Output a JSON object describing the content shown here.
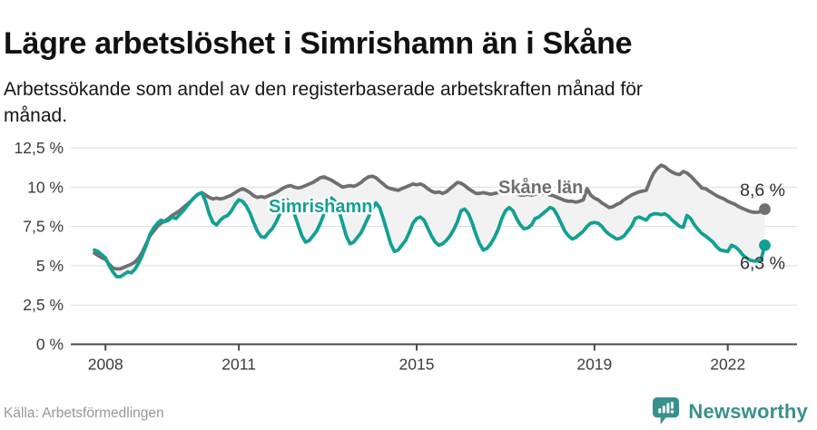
{
  "header": {
    "title": "Lägre arbetslöshet i Simrishamn än i Skåne",
    "subtitle": "Arbetssökande som andel av den registerbaserade arbetskraften månad för\nmånad."
  },
  "footer": {
    "source": "Källa: Arbetsförmedlingen",
    "brand": "Newsworthy"
  },
  "colors": {
    "simrishamn": "#12A093",
    "skane": "#6F6F6F",
    "area_fill": "#F2F2F2",
    "grid": "#DBDBDB",
    "axis": "#4A4A4A",
    "tick_text": "#3C3C3C",
    "end_label_text": "#2E2E2E",
    "brand": "#38918D",
    "background": "#FFFFFF"
  },
  "chart_data": {
    "type": "line",
    "title": "Lägre arbetslöshet i Simrishamn än i Skåne",
    "subtitle": "Arbetssökande som andel av den registerbaserade arbetskraften månad för månad.",
    "frequency": "monthly",
    "x_start": "2007-10",
    "x_end": "2022-11",
    "grid": "horizontal",
    "legend_position": "inline-labels",
    "ylim": [
      0,
      13.2
    ],
    "y_ticks": [
      0,
      2.5,
      5,
      7.5,
      10,
      12.5
    ],
    "y_tick_labels": [
      "0 %",
      "2,5 %",
      "5 %",
      "7,5 %",
      "10 %",
      "12,5 %"
    ],
    "x_ticks": [
      {
        "label": "2008",
        "month_index": 3
      },
      {
        "label": "2011",
        "month_index": 39
      },
      {
        "label": "2015",
        "month_index": 87
      },
      {
        "label": "2019",
        "month_index": 135
      },
      {
        "label": "2022",
        "month_index": 171
      }
    ],
    "series": [
      {
        "name": "Skåne län",
        "color": "#6F6F6F",
        "end_label": "8,6 %",
        "values": [
          5.8,
          5.65,
          5.5,
          5.4,
          5.1,
          4.85,
          4.8,
          4.8,
          4.9,
          5.0,
          5.1,
          5.25,
          5.5,
          5.9,
          6.4,
          6.9,
          7.2,
          7.5,
          7.7,
          7.85,
          8.0,
          8.2,
          8.35,
          8.5,
          8.7,
          8.9,
          9.1,
          9.35,
          9.55,
          9.65,
          9.5,
          9.35,
          9.25,
          9.3,
          9.25,
          9.3,
          9.4,
          9.5,
          9.65,
          9.8,
          9.9,
          9.8,
          9.65,
          9.45,
          9.35,
          9.4,
          9.35,
          9.45,
          9.55,
          9.65,
          9.8,
          9.95,
          10.05,
          10.1,
          10.0,
          9.95,
          10.0,
          10.1,
          10.2,
          10.3,
          10.45,
          10.6,
          10.65,
          10.55,
          10.45,
          10.3,
          10.15,
          10.0,
          10.05,
          10.1,
          10.05,
          10.15,
          10.3,
          10.5,
          10.65,
          10.7,
          10.6,
          10.4,
          10.2,
          10.0,
          9.9,
          9.85,
          9.8,
          9.9,
          10.0,
          10.1,
          10.2,
          10.15,
          10.2,
          10.1,
          9.9,
          9.75,
          9.65,
          9.7,
          9.6,
          9.7,
          9.9,
          10.1,
          10.3,
          10.25,
          10.1,
          9.9,
          9.75,
          9.6,
          9.6,
          9.65,
          9.6,
          9.55,
          9.6,
          9.65,
          9.7,
          9.75,
          9.8,
          9.7,
          9.6,
          9.5,
          9.5,
          9.55,
          9.5,
          9.55,
          9.6,
          9.6,
          9.6,
          9.5,
          9.45,
          9.35,
          9.25,
          9.15,
          9.1,
          9.1,
          9.05,
          9.1,
          9.2,
          9.9,
          9.5,
          9.3,
          9.2,
          9.0,
          8.85,
          8.7,
          8.75,
          8.9,
          9.0,
          9.2,
          9.35,
          9.5,
          9.6,
          9.7,
          9.75,
          9.8,
          10.4,
          10.9,
          11.2,
          11.4,
          11.3,
          11.1,
          10.95,
          10.85,
          10.8,
          11.0,
          10.9,
          10.7,
          10.45,
          10.2,
          9.95,
          9.9,
          9.75,
          9.6,
          9.45,
          9.35,
          9.25,
          9.1,
          9.0,
          8.9,
          8.75,
          8.65,
          8.55,
          8.45,
          8.4,
          8.4,
          8.45,
          8.6
        ]
      },
      {
        "name": "Simrishamn",
        "color": "#12A093",
        "end_label": "6,3 %",
        "values": [
          6.0,
          5.9,
          5.7,
          5.5,
          5.0,
          4.6,
          4.3,
          4.3,
          4.45,
          4.6,
          4.55,
          4.8,
          5.2,
          5.7,
          6.3,
          7.0,
          7.4,
          7.7,
          7.9,
          7.8,
          7.9,
          8.1,
          8.0,
          8.25,
          8.5,
          8.8,
          9.1,
          9.35,
          9.55,
          9.65,
          9.1,
          8.3,
          7.75,
          7.6,
          7.9,
          8.1,
          8.2,
          8.5,
          8.9,
          9.2,
          9.1,
          8.8,
          8.35,
          7.75,
          7.2,
          6.85,
          6.8,
          7.1,
          7.35,
          7.75,
          8.25,
          8.95,
          9.2,
          8.9,
          8.3,
          7.6,
          6.9,
          6.5,
          6.6,
          6.9,
          7.2,
          7.7,
          8.3,
          8.9,
          9.3,
          9.1,
          8.5,
          7.7,
          6.9,
          6.4,
          6.5,
          6.8,
          7.1,
          7.6,
          8.1,
          8.6,
          9.0,
          8.7,
          8.0,
          7.2,
          6.4,
          5.9,
          6.0,
          6.3,
          6.6,
          7.1,
          7.7,
          8.0,
          8.1,
          7.9,
          7.4,
          6.9,
          6.5,
          6.3,
          6.4,
          6.6,
          6.9,
          7.3,
          7.8,
          8.5,
          8.6,
          8.3,
          7.7,
          7.0,
          6.4,
          6.0,
          6.1,
          6.4,
          6.8,
          7.3,
          8.0,
          8.5,
          8.7,
          8.5,
          8.0,
          7.6,
          7.35,
          7.4,
          7.6,
          8.0,
          8.1,
          8.3,
          8.5,
          8.7,
          8.6,
          8.2,
          7.7,
          7.2,
          6.9,
          6.7,
          6.8,
          7.0,
          7.2,
          7.5,
          7.7,
          7.75,
          7.7,
          7.5,
          7.2,
          7.0,
          6.85,
          6.7,
          6.75,
          6.9,
          7.2,
          7.5,
          8.0,
          8.1,
          8.0,
          7.9,
          8.2,
          8.3,
          8.3,
          8.25,
          8.3,
          8.15,
          7.9,
          7.7,
          7.5,
          7.45,
          8.2,
          8.0,
          7.6,
          7.3,
          7.05,
          6.9,
          6.7,
          6.5,
          6.2,
          6.0,
          5.95,
          5.9,
          6.3,
          6.2,
          6.0,
          5.7,
          5.5,
          5.35,
          5.3,
          5.3,
          5.4,
          6.3
        ]
      }
    ]
  }
}
